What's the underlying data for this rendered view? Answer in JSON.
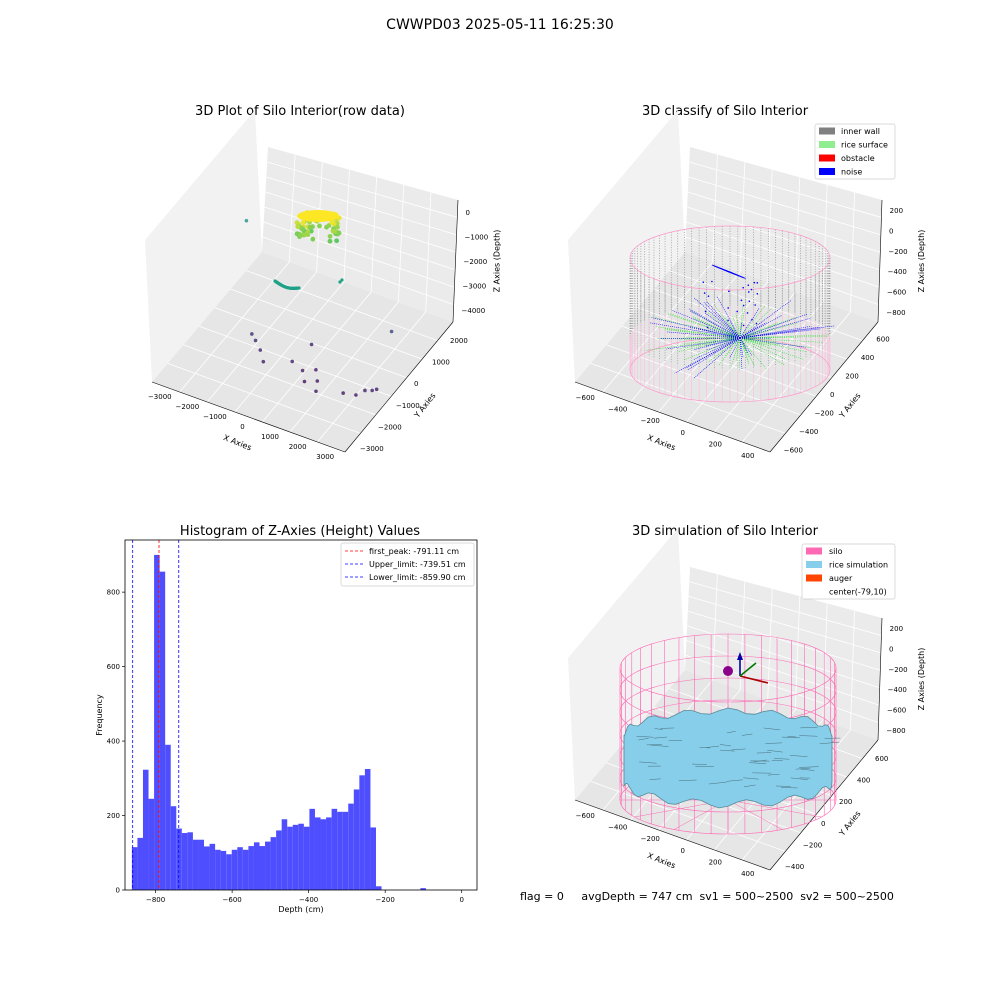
{
  "suptitle": "CWWPD03 2025-05-11 16:25:30",
  "footer": "flag = 0     avgDepth = 747 cm  sv1 = 500~2500  sv2 = 500~2500",
  "chart_data": [
    {
      "type": "scatter",
      "title": "3D Plot of Silo Interior(row data)",
      "xlabel": "X Axies",
      "ylabel": "Y Axies",
      "zlabel": "Z Axies (Depth)",
      "x_ticks": [
        "−3000",
        "−2000",
        "−1000",
        "0",
        "1000",
        "2000",
        "3000"
      ],
      "y_ticks": [
        "−3000",
        "−2000",
        "−1000",
        "0",
        "1000",
        "2000"
      ],
      "z_ticks": [
        "−4000",
        "−3000",
        "−2000",
        "−1000",
        "0"
      ],
      "colormap": "viridis",
      "cluster": {
        "shape": "cylinder",
        "x_range": [
          -400,
          400
        ],
        "y_range": [
          -400,
          400
        ],
        "z_range": [
          -1300,
          -500
        ]
      },
      "arc_points": 40,
      "scattered_points": [
        {
          "x": -3100,
          "y": 1200,
          "z": -1800
        },
        {
          "x": -1400,
          "y": -1100,
          "z": -3800
        },
        {
          "x": -1200,
          "y": -1200,
          "z": -3900
        },
        {
          "x": -900,
          "y": -1400,
          "z": -4000
        },
        {
          "x": -600,
          "y": -1700,
          "z": -4100
        },
        {
          "x": 400,
          "y": -500,
          "z": -4000
        },
        {
          "x": 200,
          "y": -1300,
          "z": -4100
        },
        {
          "x": 1000,
          "y": -1200,
          "z": -4200
        },
        {
          "x": 1300,
          "y": -1600,
          "z": -4200
        },
        {
          "x": 1500,
          "y": -2000,
          "z": -4200
        },
        {
          "x": 900,
          "y": -1700,
          "z": -4300
        },
        {
          "x": 700,
          "y": -1500,
          "z": -4100
        },
        {
          "x": 2300,
          "y": -1700,
          "z": -4200
        },
        {
          "x": 2700,
          "y": -1600,
          "z": -4200
        },
        {
          "x": 2900,
          "y": -1400,
          "z": -4100
        },
        {
          "x": 3100,
          "y": -1300,
          "z": -4100
        },
        {
          "x": 3200,
          "y": -1200,
          "z": -4100
        },
        {
          "x": 2600,
          "y": 600,
          "z": -3500
        }
      ]
    },
    {
      "type": "scatter",
      "title": "3D classify of Silo Interior",
      "xlabel": "X Axies",
      "ylabel": "Y Axies",
      "zlabel": "Z Axies (Depth)",
      "x_ticks": [
        "−600",
        "−400",
        "−200",
        "0",
        "200",
        "400"
      ],
      "y_ticks": [
        "−600",
        "−400",
        "−200",
        "0",
        "200",
        "400",
        "600"
      ],
      "z_ticks": [
        "−800",
        "−600",
        "−400",
        "−200",
        "0",
        "200"
      ],
      "legend": {
        "position": "top-right",
        "entries": [
          {
            "label": "inner wall",
            "color": "#808080"
          },
          {
            "label": "rice surface",
            "color": "#90ee90"
          },
          {
            "label": "obstacle",
            "color": "#ff0000"
          },
          {
            "label": "noise",
            "color": "#0000ff"
          }
        ]
      }
    },
    {
      "type": "bar",
      "title": "Histogram of Z-Axies (Height) Values",
      "xlabel": "Depth (cm)",
      "ylabel": "Frequency",
      "xlim": [
        -880,
        40
      ],
      "ylim": [
        0,
        940
      ],
      "x_ticks": [
        -800,
        -600,
        -400,
        -200,
        0
      ],
      "x_tick_labels": [
        "−800",
        "−600",
        "−400",
        "−200",
        "0"
      ],
      "y_ticks": [
        0,
        200,
        400,
        600,
        800
      ],
      "bar_color": "#4e4eff",
      "bin_start": -862,
      "bin_width": 14.5,
      "values": [
        115,
        140,
        323,
        245,
        900,
        855,
        390,
        225,
        165,
        153,
        155,
        135,
        135,
        117,
        124,
        108,
        105,
        96,
        108,
        115,
        108,
        118,
        128,
        118,
        130,
        142,
        160,
        190,
        170,
        175,
        178,
        170,
        218,
        195,
        190,
        195,
        218,
        210,
        210,
        232,
        270,
        308,
        325,
        168,
        10,
        0,
        0,
        0,
        0,
        0,
        0,
        0,
        5,
        0,
        0,
        0
      ],
      "vlines": [
        {
          "x": -791.11,
          "label": "first_peak: -791.11 cm",
          "color": "#ff0000"
        },
        {
          "x": -739.51,
          "label": "Upper_limit: -739.51 cm",
          "color": "#0000ff"
        },
        {
          "x": -859.9,
          "label": "Lower_limit: -859.90 cm",
          "color": "#0000ff"
        }
      ],
      "legend": {
        "position": "top-right"
      }
    },
    {
      "type": "surface",
      "title": "3D simulation of Silo Interior",
      "xlabel": "X Axies",
      "ylabel": "Y Axies",
      "zlabel": "Z Axies (Depth)",
      "x_ticks": [
        "−600",
        "−400",
        "−200",
        "0",
        "200",
        "400"
      ],
      "y_ticks": [
        "−400",
        "−200",
        "0",
        "200",
        "400",
        "600"
      ],
      "z_ticks": [
        "−800",
        "−600",
        "−400",
        "−200",
        "0",
        "200"
      ],
      "legend": {
        "position": "top-right",
        "entries": [
          {
            "label": "silo",
            "color": "#ff69b4"
          },
          {
            "label": "rice simulation",
            "color": "#87ceeb"
          },
          {
            "label": "auger",
            "color": "#ff4500"
          },
          {
            "label": "center(-79,10)",
            "color": "#ffffff"
          }
        ]
      }
    }
  ]
}
